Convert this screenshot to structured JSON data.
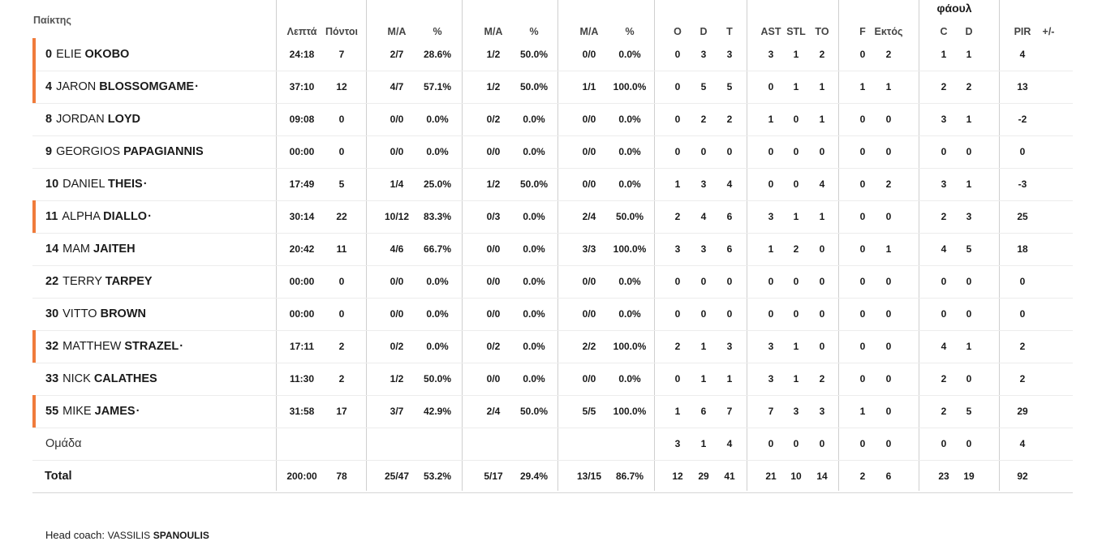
{
  "header": {
    "player": "Παίκτης",
    "fouls_group": "φάουλ",
    "columns": [
      "Λεπτά",
      "Πόντοι",
      "Μ/Α",
      "%",
      "Μ/Α",
      "%",
      "Μ/Α",
      "%",
      "O",
      "D",
      "T",
      "AST",
      "STL",
      "TO",
      "F",
      "Εκτός",
      "C",
      "D",
      "PIR",
      "+/-"
    ]
  },
  "players": [
    {
      "num": "0",
      "first": "ELIE",
      "last": "OKOBO",
      "dot": "",
      "starter": true,
      "stats": [
        "24:18",
        "7",
        "2/7",
        "28.6%",
        "1/2",
        "50.0%",
        "0/0",
        "0.0%",
        "0",
        "3",
        "3",
        "3",
        "1",
        "2",
        "0",
        "2",
        "1",
        "1",
        "4",
        ""
      ]
    },
    {
      "num": "4",
      "first": "JARON",
      "last": "BLOSSOMGAME",
      "dot": "·",
      "starter": true,
      "stats": [
        "37:10",
        "12",
        "4/7",
        "57.1%",
        "1/2",
        "50.0%",
        "1/1",
        "100.0%",
        "0",
        "5",
        "5",
        "0",
        "1",
        "1",
        "1",
        "1",
        "2",
        "2",
        "13",
        ""
      ]
    },
    {
      "num": "8",
      "first": "JORDAN",
      "last": "LOYD",
      "dot": "",
      "starter": false,
      "stats": [
        "09:08",
        "0",
        "0/0",
        "0.0%",
        "0/2",
        "0.0%",
        "0/0",
        "0.0%",
        "0",
        "2",
        "2",
        "1",
        "0",
        "1",
        "0",
        "0",
        "3",
        "1",
        "-2",
        ""
      ]
    },
    {
      "num": "9",
      "first": "GEORGIOS",
      "last": "PAPAGIANNIS",
      "dot": "",
      "starter": false,
      "stats": [
        "00:00",
        "0",
        "0/0",
        "0.0%",
        "0/0",
        "0.0%",
        "0/0",
        "0.0%",
        "0",
        "0",
        "0",
        "0",
        "0",
        "0",
        "0",
        "0",
        "0",
        "0",
        "0",
        ""
      ]
    },
    {
      "num": "10",
      "first": "DANIEL",
      "last": "THEIS",
      "dot": "·",
      "starter": false,
      "stats": [
        "17:49",
        "5",
        "1/4",
        "25.0%",
        "1/2",
        "50.0%",
        "0/0",
        "0.0%",
        "1",
        "3",
        "4",
        "0",
        "0",
        "4",
        "0",
        "2",
        "3",
        "1",
        "-3",
        ""
      ]
    },
    {
      "num": "11",
      "first": "ALPHA",
      "last": "DIALLO",
      "dot": "·",
      "starter": true,
      "stats": [
        "30:14",
        "22",
        "10/12",
        "83.3%",
        "0/3",
        "0.0%",
        "2/4",
        "50.0%",
        "2",
        "4",
        "6",
        "3",
        "1",
        "1",
        "0",
        "0",
        "2",
        "3",
        "25",
        ""
      ]
    },
    {
      "num": "14",
      "first": "MAM",
      "last": "JAITEH",
      "dot": "",
      "starter": false,
      "stats": [
        "20:42",
        "11",
        "4/6",
        "66.7%",
        "0/0",
        "0.0%",
        "3/3",
        "100.0%",
        "3",
        "3",
        "6",
        "1",
        "2",
        "0",
        "0",
        "1",
        "4",
        "5",
        "18",
        ""
      ]
    },
    {
      "num": "22",
      "first": "TERRY",
      "last": "TARPEY",
      "dot": "",
      "starter": false,
      "stats": [
        "00:00",
        "0",
        "0/0",
        "0.0%",
        "0/0",
        "0.0%",
        "0/0",
        "0.0%",
        "0",
        "0",
        "0",
        "0",
        "0",
        "0",
        "0",
        "0",
        "0",
        "0",
        "0",
        ""
      ]
    },
    {
      "num": "30",
      "first": "VITTO",
      "last": "BROWN",
      "dot": "",
      "starter": false,
      "stats": [
        "00:00",
        "0",
        "0/0",
        "0.0%",
        "0/0",
        "0.0%",
        "0/0",
        "0.0%",
        "0",
        "0",
        "0",
        "0",
        "0",
        "0",
        "0",
        "0",
        "0",
        "0",
        "0",
        ""
      ]
    },
    {
      "num": "32",
      "first": "MATTHEW",
      "last": "STRAZEL",
      "dot": "·",
      "starter": true,
      "stats": [
        "17:11",
        "2",
        "0/2",
        "0.0%",
        "0/2",
        "0.0%",
        "2/2",
        "100.0%",
        "2",
        "1",
        "3",
        "3",
        "1",
        "0",
        "0",
        "0",
        "4",
        "1",
        "2",
        ""
      ]
    },
    {
      "num": "33",
      "first": "NICK",
      "last": "CALATHES",
      "dot": "",
      "starter": false,
      "stats": [
        "11:30",
        "2",
        "1/2",
        "50.0%",
        "0/0",
        "0.0%",
        "0/0",
        "0.0%",
        "0",
        "1",
        "1",
        "3",
        "1",
        "2",
        "0",
        "0",
        "2",
        "0",
        "2",
        ""
      ]
    },
    {
      "num": "55",
      "first": "MIKE",
      "last": "JAMES",
      "dot": "·",
      "starter": true,
      "stats": [
        "31:58",
        "17",
        "3/7",
        "42.9%",
        "2/4",
        "50.0%",
        "5/5",
        "100.0%",
        "1",
        "6",
        "7",
        "7",
        "3",
        "3",
        "1",
        "0",
        "2",
        "5",
        "29",
        ""
      ]
    }
  ],
  "team": {
    "label": "Ομάδα",
    "stats": [
      "",
      "",
      "",
      "",
      "",
      "",
      "",
      "",
      "3",
      "1",
      "4",
      "0",
      "0",
      "0",
      "0",
      "0",
      "0",
      "0",
      "4",
      ""
    ]
  },
  "total": {
    "label": "Total",
    "stats": [
      "200:00",
      "78",
      "25/47",
      "53.2%",
      "5/17",
      "29.4%",
      "13/15",
      "86.7%",
      "12",
      "29",
      "41",
      "21",
      "10",
      "14",
      "2",
      "6",
      "23",
      "19",
      "92",
      ""
    ]
  },
  "coach": {
    "prefix": "Head coach:",
    "first": "VASSILIS",
    "last": "SPANOULIS"
  },
  "colors": {
    "starter": "#f07b3b",
    "separator": "#cfcfcf"
  }
}
